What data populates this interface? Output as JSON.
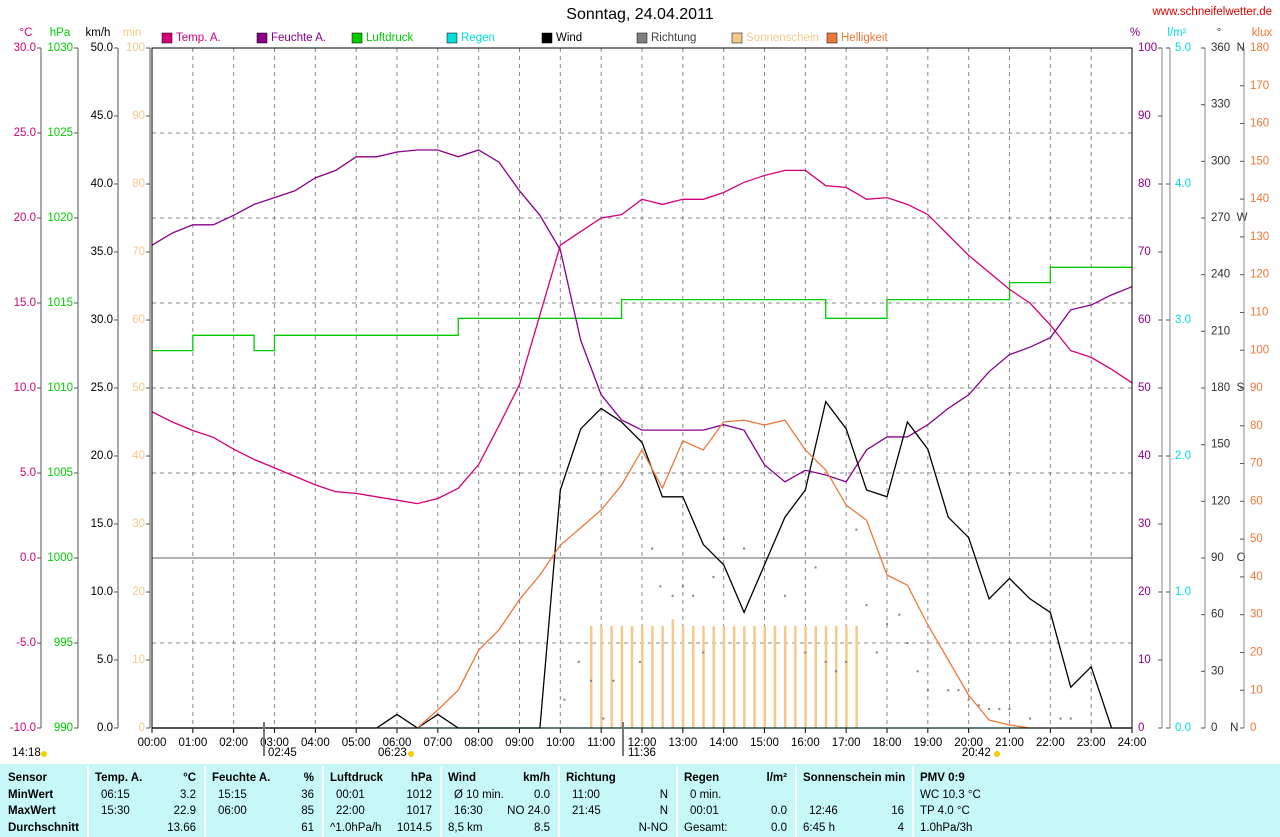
{
  "chart_data": {
    "type": "line",
    "title": "Sonntag, 24.04.2011",
    "source": "www.schneifelwetter.de",
    "x": [
      0,
      0.5,
      1,
      1.5,
      2,
      2.5,
      3,
      3.5,
      4,
      4.5,
      5,
      5.5,
      6,
      6.5,
      7,
      7.5,
      8,
      8.5,
      9,
      9.5,
      10,
      10.5,
      11,
      11.5,
      12,
      12.5,
      13,
      13.5,
      14,
      14.5,
      15,
      15.5,
      16,
      16.5,
      17,
      17.5,
      18,
      18.5,
      19,
      19.5,
      20,
      20.5,
      21,
      21.5,
      22,
      22.5,
      23,
      23.5,
      24
    ],
    "xlim": [
      0,
      24
    ],
    "xticks": [
      {
        "value": 0,
        "label": "00:00"
      },
      {
        "value": 1,
        "label": "01:00"
      },
      {
        "value": 2,
        "label": "02:00"
      },
      {
        "value": 3,
        "label": "03:00"
      },
      {
        "value": 4,
        "label": "04:00"
      },
      {
        "value": 5,
        "label": "05:00"
      },
      {
        "value": 6,
        "label": "06:00"
      },
      {
        "value": 7,
        "label": "07:00"
      },
      {
        "value": 8,
        "label": "08:00"
      },
      {
        "value": 9,
        "label": "09:00"
      },
      {
        "value": 10,
        "label": "10:00"
      },
      {
        "value": 11,
        "label": "11:00"
      },
      {
        "value": 12,
        "label": "12:00"
      },
      {
        "value": 13,
        "label": "13:00"
      },
      {
        "value": 14,
        "label": "14:00"
      },
      {
        "value": 15,
        "label": "15:00"
      },
      {
        "value": 16,
        "label": "16:00"
      },
      {
        "value": 17,
        "label": "17:00"
      },
      {
        "value": 18,
        "label": "18:00"
      },
      {
        "value": 19,
        "label": "19:00"
      },
      {
        "value": 20,
        "label": "20:00"
      },
      {
        "value": 21,
        "label": "21:00"
      },
      {
        "value": 22,
        "label": "22:00"
      },
      {
        "value": 23,
        "label": "23:00"
      },
      {
        "value": 24,
        "label": "24:00"
      }
    ],
    "grid": true,
    "series": [
      {
        "name": "Temp. A.",
        "unit": "°C",
        "color": "#d4007a",
        "side": "left",
        "style": "line",
        "ylim": [
          -10,
          30
        ],
        "yticks": [
          {
            "value": -10,
            "label": "-10.0"
          },
          {
            "value": -5,
            "label": "-5.0"
          },
          {
            "value": 0,
            "label": "0.0"
          },
          {
            "value": 5,
            "label": "5.0"
          },
          {
            "value": 10,
            "label": "10.0"
          },
          {
            "value": 15,
            "label": "15.0"
          },
          {
            "value": 20,
            "label": "20.0"
          },
          {
            "value": 25,
            "label": "25.0"
          },
          {
            "value": 30,
            "label": "30.0"
          }
        ],
        "values": [
          8.6,
          8.0,
          7.5,
          7.1,
          6.4,
          5.8,
          5.3,
          4.8,
          4.3,
          3.9,
          3.8,
          3.6,
          3.4,
          3.2,
          3.5,
          4.1,
          5.5,
          7.8,
          10.2,
          14.3,
          18.4,
          19.2,
          20.0,
          20.2,
          21.1,
          20.8,
          21.1,
          21.1,
          21.5,
          22.1,
          22.5,
          22.8,
          22.8,
          21.9,
          21.8,
          21.1,
          21.2,
          20.8,
          20.2,
          19.0,
          17.8,
          16.8,
          15.8,
          15.0,
          13.7,
          12.2,
          11.8,
          11.1,
          10.3
        ]
      },
      {
        "name": "Feuchte A.",
        "unit": "%",
        "color": "#8a008a",
        "side": "right",
        "style": "line",
        "ylim": [
          0,
          100
        ],
        "yticks": [
          0,
          10,
          20,
          30,
          40,
          50,
          60,
          70,
          80,
          90,
          100
        ],
        "values": [
          71,
          72.8,
          74,
          74,
          75.4,
          77,
          78,
          79,
          80.9,
          82,
          84,
          84,
          84.7,
          85,
          85,
          84,
          85,
          83.2,
          79,
          75.4,
          70.3,
          57,
          49,
          45.3,
          43.8,
          43.8,
          43.8,
          43.8,
          44.6,
          43.8,
          38.7,
          36.2,
          37.9,
          37.2,
          36.2,
          40.9,
          42.8,
          42.8,
          44.6,
          47,
          49,
          52.4,
          54.9,
          56,
          57.4,
          61.5,
          62.2,
          63.7,
          64.9
        ]
      },
      {
        "name": "Luftdruck",
        "unit": "hPa",
        "color": "#00cc00",
        "side": "left",
        "style": "step",
        "ylim": [
          990,
          1030
        ],
        "yticks": [
          990,
          995,
          1000,
          1005,
          1010,
          1015,
          1020,
          1025,
          1030
        ],
        "values": [
          1012.2,
          1012.2,
          1013.1,
          1013.1,
          1013.1,
          1012.2,
          1013.1,
          1013.1,
          1013.1,
          1013.1,
          1013.1,
          1013.1,
          1013.1,
          1013.1,
          1013.1,
          1014.1,
          1014.1,
          1014.1,
          1014.1,
          1014.1,
          1014.1,
          1014.1,
          1014.1,
          1015.2,
          1015.2,
          1015.2,
          1015.2,
          1015.2,
          1015.2,
          1015.2,
          1015.2,
          1015.2,
          1015.2,
          1014.1,
          1014.1,
          1014.1,
          1015.2,
          1015.2,
          1015.2,
          1015.2,
          1015.2,
          1015.2,
          1016.2,
          1016.2,
          1017.1,
          1017.1,
          1017.1,
          1017.1,
          1017.1
        ]
      },
      {
        "name": "Regen",
        "unit": "l/m²",
        "color": "#00dede",
        "side": "right",
        "style": "line",
        "ylim": [
          0,
          5
        ],
        "yticks": [
          {
            "value": 0,
            "label": "0.0"
          },
          {
            "value": 1,
            "label": "1.0"
          },
          {
            "value": 2,
            "label": "2.0"
          },
          {
            "value": 3,
            "label": "3.0"
          },
          {
            "value": 4,
            "label": "4.0"
          },
          {
            "value": 5,
            "label": "5.0"
          }
        ],
        "x": [
          0,
          24
        ],
        "values": [
          0,
          0
        ]
      },
      {
        "name": "Wind",
        "unit": "km/h",
        "color": "#000000",
        "side": "left",
        "style": "line",
        "ylim": [
          0,
          50
        ],
        "yticks": [
          {
            "value": 0,
            "label": "0.0"
          },
          {
            "value": 5,
            "label": "5.0"
          },
          {
            "value": 10,
            "label": "10.0"
          },
          {
            "value": 15,
            "label": "15.0"
          },
          {
            "value": 20,
            "label": "20.0"
          },
          {
            "value": 25,
            "label": "25.0"
          },
          {
            "value": 30,
            "label": "30.0"
          },
          {
            "value": 35,
            "label": "35.0"
          },
          {
            "value": 40,
            "label": "40.0"
          },
          {
            "value": 45,
            "label": "45.0"
          },
          {
            "value": 50,
            "label": "50.0"
          }
        ],
        "values": [
          0,
          0,
          0,
          0,
          0,
          0,
          0,
          0,
          0,
          0,
          0,
          0,
          1.0,
          0,
          1.0,
          0,
          0,
          0,
          0,
          0,
          17.5,
          22.0,
          23.5,
          22.5,
          21.0,
          17.0,
          17.0,
          13.5,
          12.0,
          8.5,
          12.0,
          15.5,
          17.5,
          24.0,
          22.0,
          17.5,
          17.0,
          22.5,
          20.5,
          15.5,
          14.0,
          9.5,
          11.0,
          9.5,
          8.5,
          3.0,
          4.5,
          0,
          0
        ]
      },
      {
        "name": "Richtung",
        "unit": "°",
        "color": "#808080",
        "side": "right",
        "style": "dots",
        "ylim": [
          0,
          360
        ],
        "yticks": [
          {
            "value": 0,
            "label": "0    N"
          },
          {
            "value": 30,
            "label": "30"
          },
          {
            "value": 60,
            "label": "60"
          },
          {
            "value": 90,
            "label": "90    O"
          },
          {
            "value": 120,
            "label": "120"
          },
          {
            "value": 150,
            "label": "150"
          },
          {
            "value": 180,
            "label": "180  S"
          },
          {
            "value": 210,
            "label": "210"
          },
          {
            "value": 240,
            "label": "240"
          },
          {
            "value": 270,
            "label": "270  W"
          },
          {
            "value": 300,
            "label": "300"
          },
          {
            "value": 330,
            "label": "330"
          },
          {
            "value": 360,
            "label": "360  N"
          }
        ],
        "x": [
          10.1,
          10.45,
          10.75,
          11.05,
          11.3,
          11.95,
          12.25,
          12.45,
          12.75,
          13.0,
          13.25,
          13.5,
          13.75,
          14.0,
          14.5,
          15.0,
          15.5,
          16.0,
          16.25,
          16.5,
          16.75,
          17.0,
          17.25,
          17.5,
          17.75,
          18.0,
          18.3,
          18.5,
          18.75,
          19.0,
          19.5,
          19.75,
          20.0,
          20.25,
          20.5,
          20.75,
          21.0,
          21.5,
          22.25,
          22.5
        ],
        "values": [
          15,
          35,
          25,
          5,
          25,
          35,
          95,
          75,
          70,
          75,
          70,
          40,
          80,
          100,
          95,
          90,
          70,
          40,
          85,
          35,
          30,
          35,
          105,
          65,
          40,
          55,
          60,
          45,
          30,
          20,
          20,
          20,
          15,
          12,
          10,
          10,
          10,
          5,
          5,
          5
        ]
      },
      {
        "name": "Sonnenschein",
        "unit": "min",
        "color": "#f5c98a",
        "side": "left",
        "style": "bars",
        "ylim": [
          0,
          100
        ],
        "yticks": [
          0,
          10,
          20,
          30,
          40,
          50,
          60,
          70,
          80,
          90,
          100
        ],
        "x": [
          10.75,
          11,
          11.25,
          11.5,
          11.75,
          12,
          12.25,
          12.5,
          12.75,
          13,
          13.25,
          13.5,
          13.75,
          14,
          14.25,
          14.5,
          14.75,
          15,
          15.25,
          15.5,
          15.75,
          16,
          16.25,
          16.5,
          16.75,
          17,
          17.25
        ],
        "values": [
          15,
          15,
          15,
          15,
          15,
          15,
          15,
          15,
          16,
          15,
          15,
          15,
          15,
          15,
          15,
          15,
          15,
          15,
          15,
          15,
          15,
          15,
          15,
          15,
          15,
          15,
          15
        ]
      },
      {
        "name": "Helligkeit",
        "unit": "klux",
        "color": "#f07838",
        "side": "right",
        "style": "line",
        "ylim": [
          0,
          180
        ],
        "yticks": [
          0,
          10,
          20,
          30,
          40,
          50,
          60,
          70,
          80,
          90,
          100,
          110,
          120,
          130,
          140,
          150,
          160,
          170,
          180
        ],
        "values": [
          0,
          0,
          0,
          0,
          0,
          0,
          0,
          0,
          0,
          0,
          0,
          0,
          0,
          0,
          4.8,
          10,
          20.6,
          26,
          34,
          40.5,
          48.4,
          53,
          57.7,
          64.3,
          73.6,
          63.5,
          76,
          73.6,
          81,
          81.5,
          80.2,
          81.5,
          73.6,
          68.3,
          59,
          55,
          40.5,
          37.8,
          27.3,
          18,
          8.7,
          2.1,
          0.8,
          0,
          0,
          0,
          0,
          0,
          0
        ]
      }
    ],
    "annotations": [
      "14:18",
      "02:45",
      "06:23",
      "11:36",
      "20:42"
    ]
  },
  "table": {
    "first_column": "Sensor",
    "columns": [
      {
        "name": "Temp. A.",
        "unit": "°C"
      },
      {
        "name": "Feuchte A.",
        "unit": "%"
      },
      {
        "name": "Luftdruck",
        "unit": "hPa"
      },
      {
        "name": "Wind",
        "unit": "km/h"
      },
      {
        "name": "Richtung"
      },
      {
        "name": "Regen",
        "unit": "l/m²"
      },
      {
        "name": "Sonnenschein min"
      },
      {
        "name": "PMV 0:9"
      }
    ],
    "rows": [
      {
        "label": "MinWert",
        "cells": [
          {
            "left": "06:15",
            "right": "3.2"
          },
          {
            "left": "15:15",
            "right": "36"
          },
          {
            "left": "00:01",
            "right": "1012"
          },
          {
            "left": "Ø 10 min.",
            "right": "0.0"
          },
          {
            "left": "11:00",
            "right": "N"
          },
          {
            "left": "0 min."
          },
          {},
          {
            "left": "WC 10.3 °C"
          }
        ]
      },
      {
        "label": "MaxWert",
        "cells": [
          {
            "left": "15:30",
            "right": "22.9"
          },
          {
            "left": "06:00",
            "right": "85"
          },
          {
            "left": "22:00",
            "right": "1017"
          },
          {
            "left": "16:30",
            "right": "NO 24.0"
          },
          {
            "left": "21:45",
            "right": "N"
          },
          {
            "left": "00:01",
            "right": "0.0"
          },
          {
            "left": "12:46",
            "right": "16"
          },
          {
            "left": "TP 4.0 °C"
          }
        ]
      },
      {
        "label": "Durchschnitt",
        "cells": [
          {
            "right": "13.66"
          },
          {
            "right": "61"
          },
          {
            "left": "^1.0hPa/h",
            "right": "1014.5"
          },
          {
            "left": "8,5 km",
            "right": "8.5"
          },
          {
            "right": "N-NO"
          },
          {
            "left": "Gesamt:",
            "right": "0.0"
          },
          {
            "left": "6:45 h",
            "right": "4"
          },
          {
            "left": "1.0hPa/3h"
          }
        ]
      }
    ]
  }
}
